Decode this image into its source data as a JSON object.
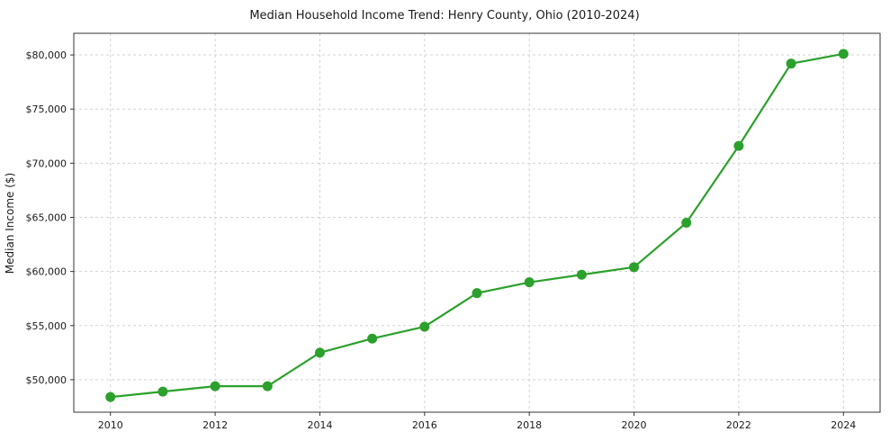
{
  "chart_data": {
    "type": "line",
    "title": "Median Household Income Trend: Henry County, Ohio (2010-2024)",
    "xlabel": "",
    "ylabel": "Median Income ($)",
    "x": [
      2010,
      2011,
      2012,
      2013,
      2014,
      2015,
      2016,
      2017,
      2018,
      2019,
      2020,
      2021,
      2022,
      2023,
      2024
    ],
    "values": [
      48400,
      48900,
      49400,
      49400,
      52500,
      53800,
      54900,
      58000,
      59000,
      59700,
      60400,
      64500,
      71600,
      79200,
      80100
    ],
    "series_name": "Median Household Income",
    "x_ticks": [
      2010,
      2012,
      2014,
      2016,
      2018,
      2020,
      2022,
      2024
    ],
    "y_ticks": [
      50000,
      55000,
      60000,
      65000,
      70000,
      75000,
      80000
    ],
    "xlim": [
      2009.3,
      2024.7
    ],
    "ylim": [
      47000,
      82000
    ],
    "grid": true,
    "legend": "none",
    "colors": {
      "line": "#2ca02c",
      "marker": "#2ca02c",
      "grid": "#d3d3d3",
      "spine": "#333333",
      "background": "#ffffff",
      "text": "#1a1a1a"
    }
  }
}
